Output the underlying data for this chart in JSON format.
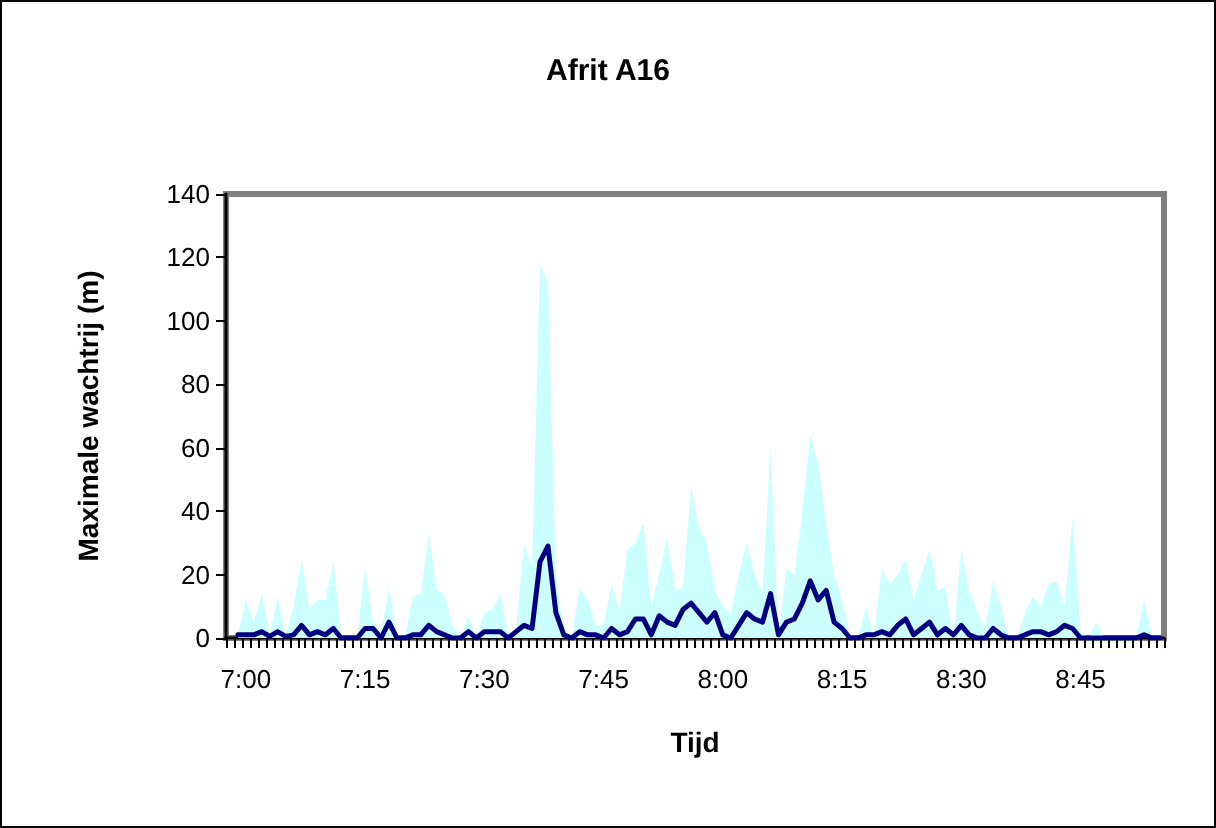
{
  "chart_data": {
    "type": "line",
    "title": "Afrit A16",
    "xlabel": "Tijd",
    "ylabel": "Maximale wachtrij (m)",
    "categories": [
      null,
      null,
      "7:00",
      null,
      null,
      null,
      null,
      null,
      null,
      null,
      null,
      null,
      null,
      null,
      null,
      null,
      null,
      "7:15",
      null,
      null,
      null,
      null,
      null,
      null,
      null,
      null,
      null,
      null,
      null,
      null,
      null,
      null,
      "7:30",
      null,
      null,
      null,
      null,
      null,
      null,
      null,
      null,
      null,
      null,
      null,
      null,
      null,
      null,
      "7:45",
      null,
      null,
      null,
      null,
      null,
      null,
      null,
      null,
      null,
      null,
      null,
      null,
      null,
      null,
      "8:00",
      null,
      null,
      null,
      null,
      null,
      null,
      null,
      null,
      null,
      null,
      null,
      null,
      null,
      null,
      "8:15",
      null,
      null,
      null,
      null,
      null,
      null,
      null,
      null,
      null,
      null,
      null,
      null,
      null,
      null,
      "8:30",
      null,
      null,
      null,
      null,
      null,
      null,
      null,
      null,
      null,
      null,
      null,
      null,
      null,
      null,
      "8:45",
      null,
      null,
      null,
      null,
      null,
      null,
      null,
      null,
      null,
      null
    ],
    "series": [
      {
        "type": "area",
        "color": "#ccffff",
        "values": [
          null,
          1,
          12,
          5,
          14,
          1,
          13,
          1,
          10,
          25,
          9,
          12,
          12,
          24,
          1,
          0,
          0,
          23,
          5,
          2,
          16,
          1,
          0,
          13,
          14,
          33,
          15,
          14,
          4,
          0,
          7,
          0,
          8,
          9,
          14,
          1,
          3,
          30,
          22,
          118,
          112,
          20,
          2,
          0,
          16,
          12,
          4,
          4,
          17,
          9,
          28,
          30,
          36,
          10,
          20,
          32,
          15,
          16,
          48,
          35,
          30,
          15,
          10,
          8,
          20,
          30,
          20,
          14,
          60,
          1,
          22,
          20,
          40,
          64,
          55,
          36,
          20,
          12,
          0,
          0,
          10,
          0,
          22,
          17,
          20,
          25,
          12,
          20,
          28,
          15,
          16,
          0,
          28,
          15,
          8,
          3,
          18,
          10,
          0,
          0,
          8,
          13,
          10,
          17,
          18,
          10,
          38,
          2,
          0,
          5,
          0,
          0,
          0,
          0,
          0,
          12,
          0,
          0
        ]
      },
      {
        "color": "#000080",
        "values": [
          null,
          1,
          1,
          1,
          2,
          0.5,
          2,
          0.5,
          1,
          4,
          1,
          2,
          1,
          3,
          0,
          0,
          0,
          3,
          3,
          0,
          5,
          0,
          0,
          1,
          1,
          4,
          2,
          1,
          0,
          0,
          2,
          0,
          2,
          2,
          2,
          0,
          2,
          4,
          3,
          24,
          29,
          8,
          1,
          0,
          2,
          1,
          1,
          0,
          3,
          1,
          2,
          6,
          6,
          1,
          7,
          5,
          4,
          9,
          11,
          8,
          5,
          8,
          1,
          0,
          4,
          8,
          6,
          5,
          14,
          1,
          5,
          6,
          11,
          18,
          12,
          15,
          5,
          3,
          0,
          0,
          1,
          1,
          2,
          1,
          4,
          6,
          1,
          3,
          5,
          1,
          3,
          1,
          4,
          1,
          0,
          0,
          3,
          1,
          0,
          0,
          1,
          2,
          2,
          1,
          2,
          4,
          3,
          0,
          0,
          0,
          0,
          0,
          0,
          0,
          0,
          1,
          0,
          0
        ]
      }
    ],
    "ylim": [
      0,
      140
    ],
    "yticks": [
      0,
      20,
      40,
      60,
      80,
      100,
      120,
      140
    ],
    "marker": "none"
  }
}
